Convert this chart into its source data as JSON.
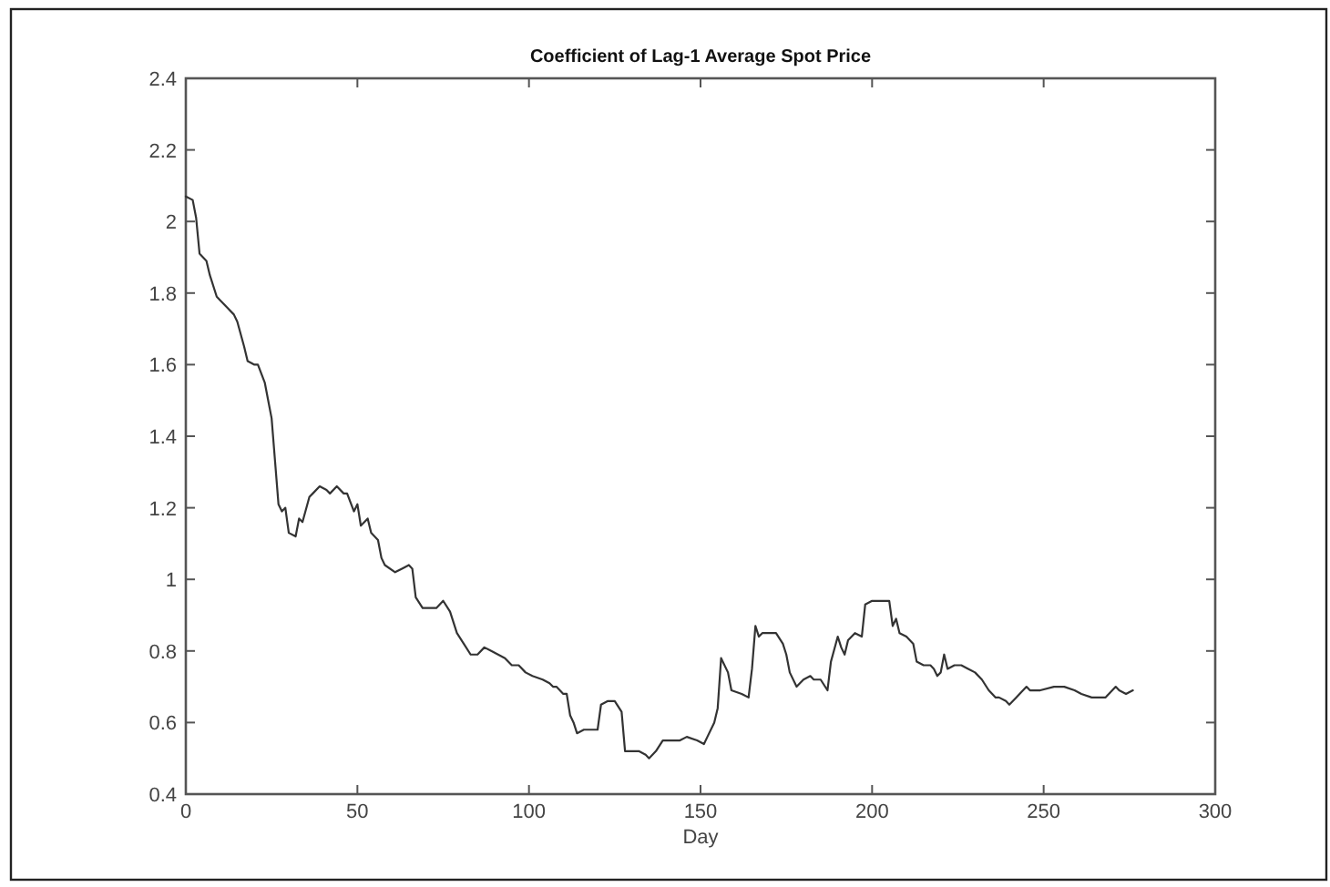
{
  "chart_data": {
    "type": "line",
    "title": "Coefficient of Lag-1 Average Spot Price",
    "xlabel": "Day",
    "x": [
      0,
      2,
      3,
      4,
      6,
      7,
      9,
      10,
      12,
      14,
      15,
      17,
      18,
      20,
      21,
      23,
      24,
      25,
      26,
      27,
      28,
      29,
      30,
      32,
      33,
      34,
      36,
      37,
      39,
      41,
      42,
      44,
      46,
      47,
      49,
      50,
      51,
      53,
      54,
      56,
      57,
      58,
      61,
      63,
      65,
      66,
      67,
      69,
      73,
      74,
      75,
      77,
      79,
      81,
      83,
      85,
      87,
      89,
      91,
      93,
      95,
      97,
      99,
      101,
      104,
      106,
      107,
      108,
      110,
      111,
      112,
      113,
      114,
      116,
      118,
      120,
      121,
      123,
      125,
      127,
      128,
      130,
      132,
      134,
      135,
      137,
      139,
      141,
      144,
      146,
      149,
      151,
      152,
      154,
      155,
      156,
      158,
      159,
      162,
      164,
      165,
      166,
      167,
      168,
      170,
      172,
      174,
      175,
      176,
      178,
      180,
      182,
      183,
      185,
      187,
      188,
      190,
      191,
      192,
      193,
      195,
      197,
      198,
      200,
      203,
      205,
      206,
      207,
      208,
      210,
      212,
      213,
      215,
      217,
      218,
      219,
      220,
      221,
      222,
      224,
      226,
      228,
      230,
      232,
      234,
      236,
      237,
      239,
      240,
      242,
      245,
      246,
      249,
      253,
      256,
      259,
      261,
      264,
      268,
      269,
      271,
      272,
      274,
      276
    ],
    "series": [
      {
        "color": "#333333",
        "values": [
          2.07,
          2.06,
          2.01,
          1.91,
          1.89,
          1.85,
          1.79,
          1.78,
          1.76,
          1.74,
          1.72,
          1.65,
          1.61,
          1.6,
          1.6,
          1.55,
          1.5,
          1.45,
          1.33,
          1.21,
          1.19,
          1.2,
          1.13,
          1.12,
          1.17,
          1.16,
          1.23,
          1.24,
          1.26,
          1.25,
          1.24,
          1.26,
          1.24,
          1.24,
          1.19,
          1.21,
          1.15,
          1.17,
          1.13,
          1.11,
          1.06,
          1.04,
          1.02,
          1.03,
          1.04,
          1.03,
          0.95,
          0.92,
          0.92,
          0.93,
          0.94,
          0.91,
          0.85,
          0.82,
          0.79,
          0.79,
          0.81,
          0.8,
          0.79,
          0.78,
          0.76,
          0.76,
          0.74,
          0.73,
          0.72,
          0.71,
          0.7,
          0.7,
          0.68,
          0.68,
          0.62,
          0.6,
          0.57,
          0.58,
          0.58,
          0.58,
          0.65,
          0.66,
          0.66,
          0.63,
          0.52,
          0.52,
          0.52,
          0.51,
          0.5,
          0.52,
          0.55,
          0.55,
          0.55,
          0.56,
          0.55,
          0.54,
          0.56,
          0.6,
          0.64,
          0.78,
          0.74,
          0.69,
          0.68,
          0.67,
          0.75,
          0.87,
          0.84,
          0.85,
          0.85,
          0.85,
          0.82,
          0.79,
          0.74,
          0.7,
          0.72,
          0.73,
          0.72,
          0.72,
          0.69,
          0.77,
          0.84,
          0.81,
          0.79,
          0.83,
          0.85,
          0.84,
          0.93,
          0.94,
          0.94,
          0.94,
          0.87,
          0.89,
          0.85,
          0.84,
          0.82,
          0.77,
          0.76,
          0.76,
          0.75,
          0.73,
          0.74,
          0.79,
          0.75,
          0.76,
          0.76,
          0.75,
          0.74,
          0.72,
          0.69,
          0.67,
          0.67,
          0.66,
          0.65,
          0.67,
          0.7,
          0.69,
          0.69,
          0.7,
          0.7,
          0.69,
          0.68,
          0.67,
          0.67,
          0.68,
          0.7,
          0.69,
          0.68,
          0.69
        ]
      }
    ],
    "xlim": [
      0,
      300
    ],
    "ylim": [
      0.4,
      2.4
    ],
    "xticks": [
      0,
      50,
      100,
      150,
      200,
      250,
      300
    ],
    "yticks": [
      0.4,
      0.6,
      0.8,
      1,
      1.2,
      1.4,
      1.6,
      1.8,
      2,
      2.2,
      2.4
    ],
    "marker": "none",
    "line_style": "solid"
  }
}
